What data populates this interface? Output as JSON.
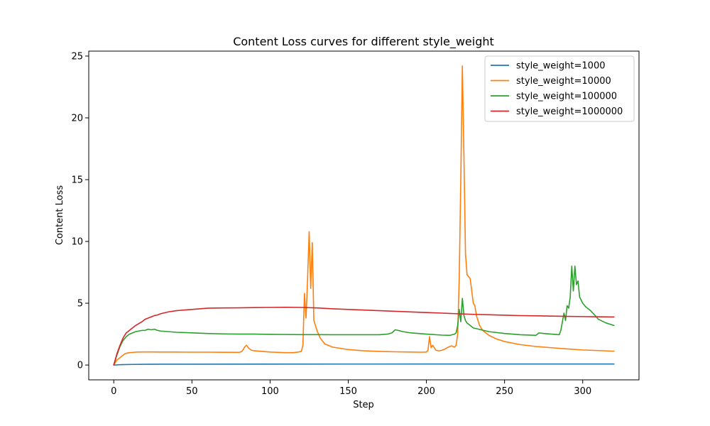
{
  "chart_data": {
    "type": "line",
    "title": "Content Loss curves for different style_weight",
    "xlabel": "Step",
    "ylabel": "Content Loss",
    "xlim": [
      -16,
      336
    ],
    "ylim": [
      -1.2,
      25.4
    ],
    "xticks": [
      0,
      50,
      100,
      150,
      200,
      250,
      300
    ],
    "yticks": [
      0,
      5,
      10,
      15,
      20,
      25
    ],
    "grid": false,
    "legend": "top-right",
    "series": [
      {
        "name": "style_weight=1000",
        "color": "#1f77b4",
        "x": [
          0,
          1,
          2,
          3,
          5,
          8,
          12,
          20,
          30,
          50,
          100,
          150,
          200,
          250,
          300,
          320
        ],
        "y": [
          0.0,
          0.005,
          0.01,
          0.02,
          0.03,
          0.04,
          0.05,
          0.06,
          0.065,
          0.07,
          0.075,
          0.078,
          0.08,
          0.08,
          0.08,
          0.08
        ]
      },
      {
        "name": "style_weight=10000",
        "color": "#ff7f0e",
        "x": [
          0,
          1,
          2,
          3,
          4,
          5,
          6,
          7,
          8,
          10,
          12,
          15,
          20,
          25,
          30,
          40,
          50,
          60,
          70,
          80,
          82,
          84,
          85,
          86,
          88,
          90,
          95,
          100,
          105,
          110,
          115,
          118,
          120,
          121,
          122,
          123,
          124,
          125,
          126,
          127,
          128,
          130,
          132,
          135,
          140,
          150,
          160,
          170,
          180,
          190,
          195,
          198,
          200,
          201,
          202,
          203,
          204,
          206,
          208,
          210,
          212,
          214,
          216,
          218,
          219,
          220,
          221,
          222,
          223,
          224,
          225,
          226,
          228,
          230,
          231,
          232,
          234,
          236,
          240,
          245,
          250,
          260,
          270,
          280,
          290,
          300,
          310,
          320
        ],
        "y": [
          0.0,
          0.2,
          0.4,
          0.5,
          0.6,
          0.7,
          0.8,
          0.9,
          0.95,
          1.0,
          1.02,
          1.05,
          1.06,
          1.06,
          1.05,
          1.05,
          1.04,
          1.04,
          1.03,
          1.02,
          1.1,
          1.5,
          1.6,
          1.4,
          1.2,
          1.15,
          1.1,
          1.05,
          1.02,
          1.0,
          1.0,
          1.05,
          1.1,
          1.6,
          5.8,
          3.8,
          7.0,
          10.8,
          6.2,
          9.9,
          3.6,
          2.8,
          2.2,
          1.7,
          1.45,
          1.25,
          1.15,
          1.1,
          1.07,
          1.05,
          1.04,
          1.04,
          1.05,
          1.2,
          2.3,
          1.4,
          1.6,
          1.2,
          1.15,
          1.2,
          1.3,
          1.45,
          1.55,
          1.45,
          1.6,
          2.5,
          7.0,
          15.0,
          24.2,
          17.0,
          9.0,
          7.3,
          7.0,
          5.0,
          4.8,
          4.0,
          3.2,
          2.8,
          2.4,
          2.1,
          1.9,
          1.65,
          1.5,
          1.4,
          1.3,
          1.22,
          1.17,
          1.12
        ]
      },
      {
        "name": "style_weight=100000",
        "color": "#2ca02c",
        "x": [
          0,
          2,
          4,
          6,
          8,
          10,
          12,
          14,
          16,
          18,
          20,
          22,
          24,
          26,
          28,
          30,
          40,
          50,
          60,
          70,
          80,
          90,
          100,
          110,
          120,
          130,
          140,
          150,
          160,
          170,
          175,
          178,
          180,
          182,
          185,
          190,
          200,
          210,
          215,
          218,
          219,
          220,
          221,
          222,
          223,
          224,
          225,
          226,
          228,
          230,
          235,
          240,
          250,
          260,
          270,
          272,
          275,
          280,
          285,
          286,
          287,
          288,
          289,
          290,
          291,
          292,
          293,
          294,
          295,
          296,
          297,
          298,
          300,
          302,
          305,
          308,
          310,
          315,
          320
        ],
        "y": [
          0.0,
          0.8,
          1.5,
          2.0,
          2.3,
          2.5,
          2.6,
          2.7,
          2.75,
          2.8,
          2.8,
          2.9,
          2.85,
          2.9,
          2.8,
          2.75,
          2.65,
          2.6,
          2.55,
          2.52,
          2.5,
          2.5,
          2.48,
          2.47,
          2.46,
          2.46,
          2.45,
          2.45,
          2.45,
          2.45,
          2.5,
          2.6,
          2.85,
          2.8,
          2.7,
          2.6,
          2.5,
          2.42,
          2.4,
          2.5,
          2.6,
          3.2,
          4.5,
          3.5,
          5.4,
          4.0,
          3.6,
          3.4,
          3.2,
          3.0,
          2.85,
          2.7,
          2.55,
          2.45,
          2.4,
          2.6,
          2.55,
          2.5,
          2.45,
          2.8,
          3.5,
          4.2,
          3.6,
          4.8,
          4.6,
          5.5,
          8.0,
          6.0,
          8.0,
          6.5,
          6.8,
          5.5,
          5.0,
          4.7,
          4.4,
          4.0,
          3.7,
          3.4,
          3.2
        ]
      },
      {
        "name": "style_weight=1000000",
        "color": "#d62728",
        "x": [
          0,
          2,
          4,
          6,
          8,
          10,
          12,
          14,
          16,
          18,
          20,
          22,
          24,
          26,
          28,
          30,
          35,
          40,
          45,
          50,
          55,
          60,
          70,
          80,
          90,
          100,
          110,
          120,
          130,
          140,
          150,
          160,
          170,
          180,
          190,
          200,
          210,
          220,
          230,
          240,
          250,
          260,
          270,
          280,
          290,
          300,
          310,
          320
        ],
        "y": [
          0.0,
          0.9,
          1.6,
          2.2,
          2.6,
          2.8,
          3.0,
          3.2,
          3.35,
          3.5,
          3.7,
          3.8,
          3.9,
          4.0,
          4.05,
          4.15,
          4.3,
          4.4,
          4.45,
          4.5,
          4.55,
          4.6,
          4.62,
          4.63,
          4.65,
          4.66,
          4.67,
          4.66,
          4.62,
          4.55,
          4.5,
          4.45,
          4.4,
          4.35,
          4.3,
          4.25,
          4.2,
          4.15,
          4.1,
          4.07,
          4.03,
          4.0,
          3.98,
          3.96,
          3.94,
          3.92,
          3.9,
          3.89
        ]
      }
    ]
  }
}
